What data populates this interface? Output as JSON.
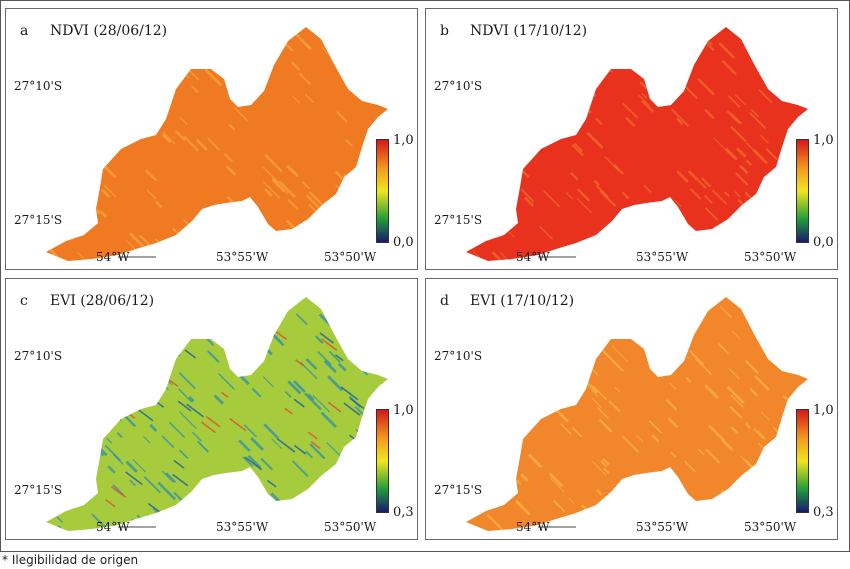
{
  "figure": {
    "panels": [
      {
        "letter": "a",
        "title": "NDVI (28/06/12)",
        "cbar_max": "1,0",
        "cbar_min": "0,0",
        "fill": "#f07a22",
        "speck": "#f7a33a"
      },
      {
        "letter": "b",
        "title": "NDVI (17/10/12)",
        "cbar_max": "1,0",
        "cbar_min": "0,0",
        "fill": "#e8321e",
        "speck": "#f06a2a"
      },
      {
        "letter": "c",
        "title": "EVI (28/06/12)",
        "cbar_max": "1,0",
        "cbar_min": "0,3",
        "fill": "#a6cc3e",
        "speck": "#2e8fa8"
      },
      {
        "letter": "d",
        "title": "EVI (17/10/12)",
        "cbar_max": "1,0",
        "cbar_min": "0,3",
        "fill": "#f2862a",
        "speck": "#f8b045"
      }
    ],
    "latitudes": [
      "27°10'S",
      "27°15'S"
    ],
    "longitudes": [
      "54°W",
      "53°55'W",
      "53°50'W"
    ]
  },
  "colorbar": {
    "stops": [
      "#1a1a6e",
      "#1f9a3a",
      "#f2e51f",
      "#f29b1f",
      "#d41818"
    ]
  },
  "caption": "* Ilegibilidad de origen"
}
